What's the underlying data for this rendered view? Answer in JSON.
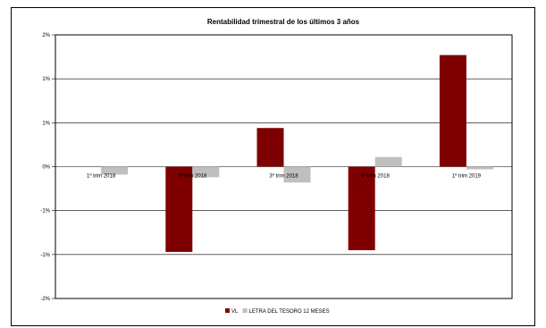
{
  "chart_data": {
    "type": "bar",
    "title": "Rentabilidad trimestral de los últimos 3 años",
    "categories": [
      "1º trim 2018",
      "2º trim 2018",
      "3º trim 2018",
      "4º trim 2018",
      "1º trim 2019"
    ],
    "series": [
      {
        "name": "VL",
        "color": "#7f0000",
        "values": [
          0.0,
          -0.97,
          0.44,
          -0.95,
          1.27
        ]
      },
      {
        "name": "LETRA DEL TESORO 12 MESES",
        "color": "#bfbfbf",
        "values": [
          -0.09,
          -0.12,
          -0.18,
          0.11,
          -0.03
        ]
      }
    ],
    "y_ticks": [
      {
        "value": 1.5,
        "label": "2%"
      },
      {
        "value": 1.0,
        "label": "1%"
      },
      {
        "value": 0.5,
        "label": "1%"
      },
      {
        "value": 0.0,
        "label": "0%"
      },
      {
        "value": -0.5,
        "label": "-1%"
      },
      {
        "value": -1.0,
        "label": "-1%"
      },
      {
        "value": -1.5,
        "label": "-2%"
      }
    ],
    "ylim": [
      -1.5,
      1.5
    ],
    "grid": true,
    "legend_position": "bottom-center"
  }
}
